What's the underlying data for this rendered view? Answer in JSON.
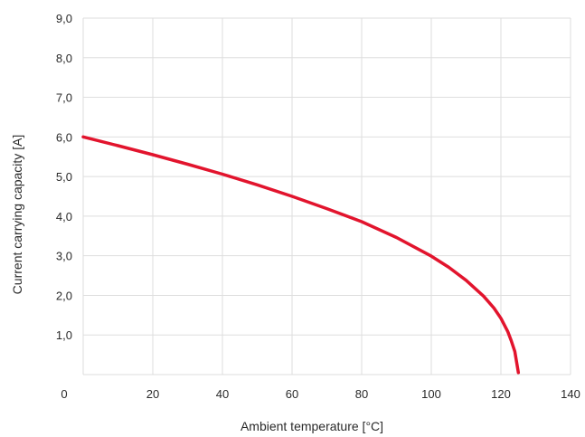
{
  "chart_data": {
    "type": "line",
    "xlabel": "Ambient temperature [°C]",
    "ylabel": "Current carrying capacity [A]",
    "xlim": [
      0,
      140
    ],
    "ylim": [
      0,
      9
    ],
    "x_ticks": [
      "0",
      "20",
      "40",
      "60",
      "80",
      "100",
      "120",
      "140"
    ],
    "x_tick_values": [
      0,
      20,
      40,
      60,
      80,
      100,
      120,
      140
    ],
    "y_ticks": [
      "1,0",
      "2,0",
      "3,0",
      "4,0",
      "5,0",
      "6,0",
      "7,0",
      "8,0",
      "9,0"
    ],
    "y_tick_values": [
      1,
      2,
      3,
      4,
      5,
      6,
      7,
      8,
      9
    ],
    "grid": true,
    "series": [
      {
        "color": "#e2142d",
        "x": [
          0,
          10,
          20,
          30,
          40,
          50,
          60,
          70,
          80,
          90,
          100,
          105,
          110,
          115,
          118,
          120,
          122,
          123,
          124,
          125
        ],
        "y": [
          6.0,
          5.78,
          5.55,
          5.31,
          5.06,
          4.79,
          4.5,
          4.19,
          3.86,
          3.46,
          2.99,
          2.71,
          2.38,
          1.98,
          1.68,
          1.42,
          1.08,
          0.85,
          0.58,
          0.05
        ]
      }
    ]
  }
}
